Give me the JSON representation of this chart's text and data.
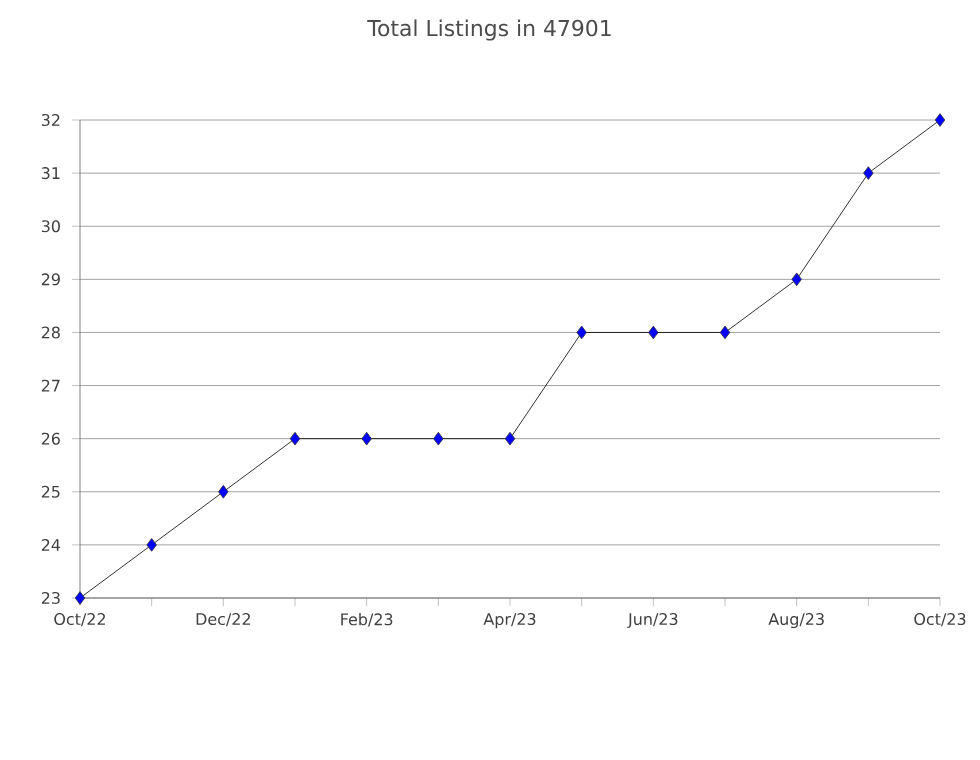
{
  "chart_data": {
    "type": "line",
    "title": "Total Listings in 47901",
    "categories": [
      "Oct/22",
      null,
      "Dec/22",
      null,
      "Feb/23",
      null,
      "Apr/23",
      null,
      "Jun/23",
      null,
      "Aug/23",
      null,
      "Oct/23"
    ],
    "values": [
      23,
      24,
      25,
      26,
      26,
      26,
      26,
      28,
      28,
      28,
      29,
      31,
      32
    ],
    "color": "#0000ff",
    "ylim": [
      23,
      32
    ],
    "yticks": [
      23,
      24,
      25,
      26,
      27,
      28,
      29,
      30,
      31,
      32
    ],
    "grid": "y",
    "marker": "diamond",
    "line_style": "solid"
  }
}
